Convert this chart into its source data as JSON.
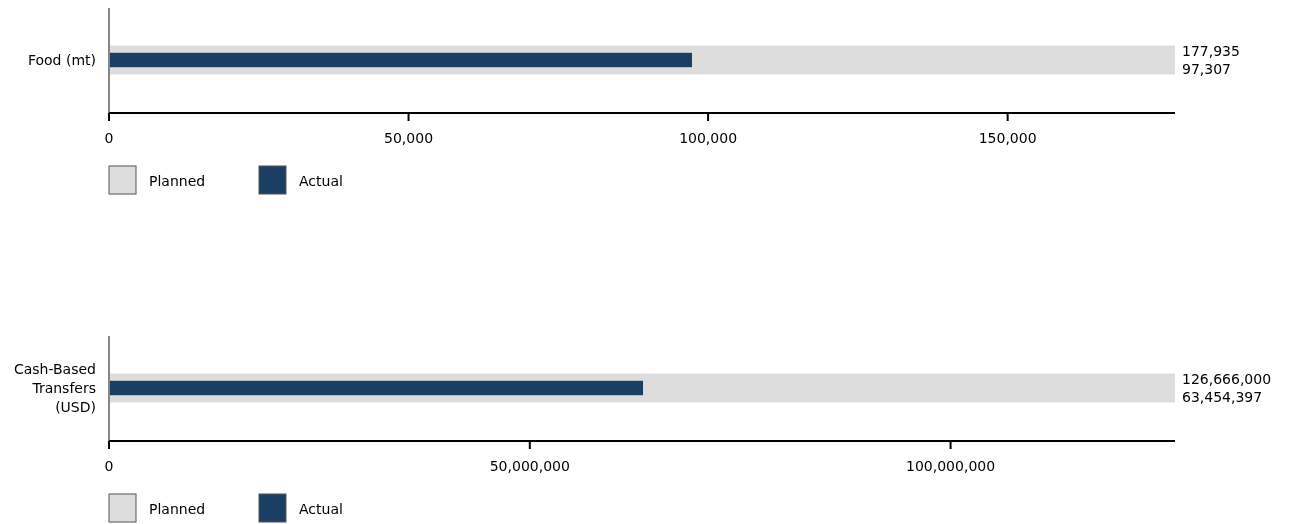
{
  "chart_data": [
    {
      "type": "bar",
      "orientation": "horizontal",
      "categories": [
        "Food (mt)"
      ],
      "series": [
        {
          "name": "Planned",
          "color": "#dddddd",
          "values": [
            177935
          ],
          "value_labels": [
            "177,935"
          ]
        },
        {
          "name": "Actual",
          "color": "#1b3e63",
          "values": [
            97307
          ]
        }
      ],
      "annotations": [
        "97,307"
      ],
      "xlim": [
        0,
        177935
      ],
      "xticks": [
        {
          "value": 0,
          "label": "0"
        },
        {
          "value": 50000,
          "label": "50,000"
        },
        {
          "value": 100000,
          "label": "100,000"
        },
        {
          "value": 150000,
          "label": "150,000"
        }
      ],
      "legend": "bottom"
    },
    {
      "type": "bar",
      "orientation": "horizontal",
      "categories": [
        "Cash-Based Transfers (USD)"
      ],
      "series": [
        {
          "name": "Planned",
          "color": "#dddddd",
          "values": [
            126666000
          ],
          "value_labels": [
            "126,666,000"
          ]
        },
        {
          "name": "Actual",
          "color": "#1b3e63",
          "values": [
            63454397
          ]
        }
      ],
      "annotations": [
        "63,454,397"
      ],
      "xlim": [
        0,
        126666000
      ],
      "xticks": [
        {
          "value": 0,
          "label": "0"
        },
        {
          "value": 50000000,
          "label": "50,000,000"
        },
        {
          "value": 100000000,
          "label": "100,000,000"
        }
      ],
      "legend": "bottom"
    }
  ]
}
